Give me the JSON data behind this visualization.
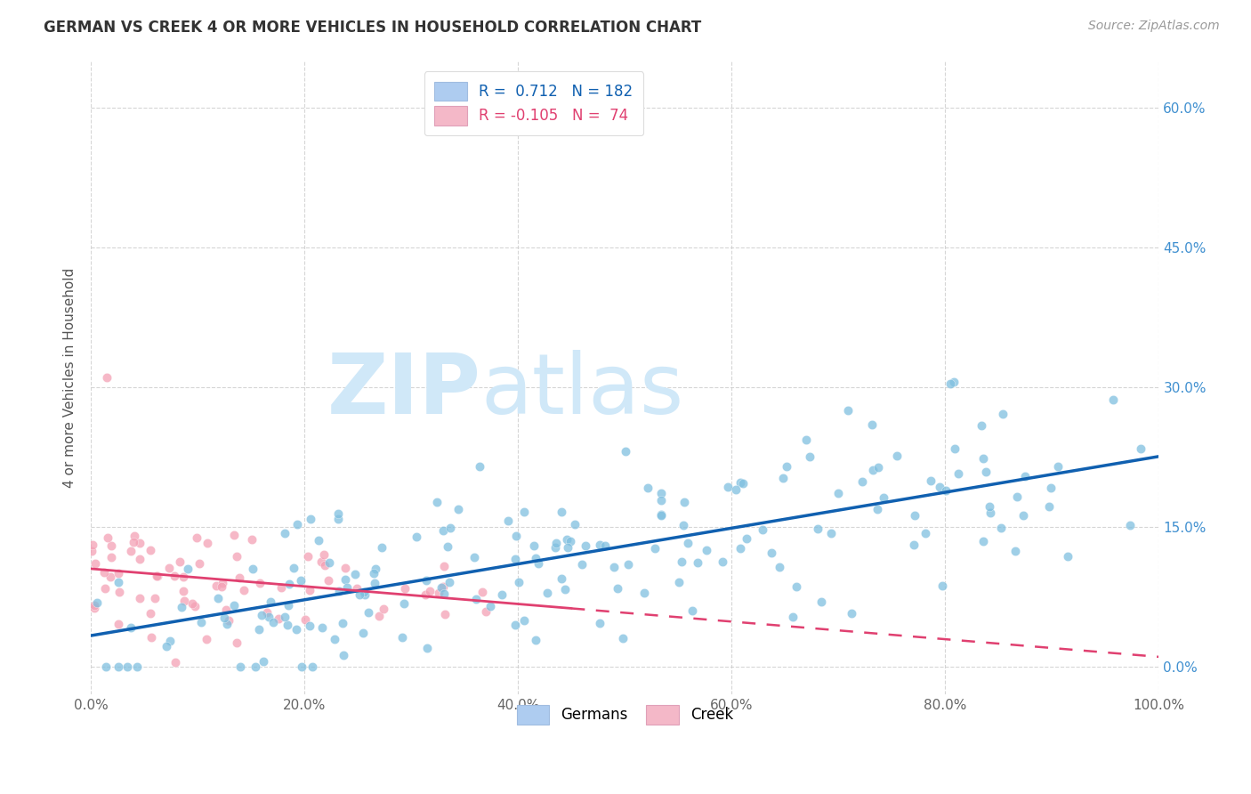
{
  "title": "GERMAN VS CREEK 4 OR MORE VEHICLES IN HOUSEHOLD CORRELATION CHART",
  "source": "Source: ZipAtlas.com",
  "ylabel": "4 or more Vehicles in Household",
  "xlim": [
    0,
    100
  ],
  "ylim": [
    -3,
    65
  ],
  "yticks": [
    0,
    15,
    30,
    45,
    60
  ],
  "ytick_labels": [
    "0.0%",
    "15.0%",
    "30.0%",
    "45.0%",
    "60.0%"
  ],
  "xticks": [
    0,
    20,
    40,
    60,
    80,
    100
  ],
  "xtick_labels": [
    "0.0%",
    "20.0%",
    "40.0%",
    "60.0%",
    "80.0%",
    "100.0%"
  ],
  "german_color": "#7fbfdf",
  "creek_color": "#f4a0b5",
  "legend_blue_box": "#aeccf0",
  "legend_pink_box": "#f4b8c8",
  "german_R": 0.712,
  "german_N": 182,
  "creek_R": -0.105,
  "creek_N": 74,
  "title_fontsize": 12,
  "tick_fontsize": 11,
  "ylabel_fontsize": 11,
  "blue_line_color": "#1060b0",
  "pink_line_color": "#e04070",
  "legend_R_blue": "#1060b0",
  "legend_R_pink": "#e04070",
  "watermark_color": "#d0e8f8",
  "right_tick_color": "#4090d0"
}
